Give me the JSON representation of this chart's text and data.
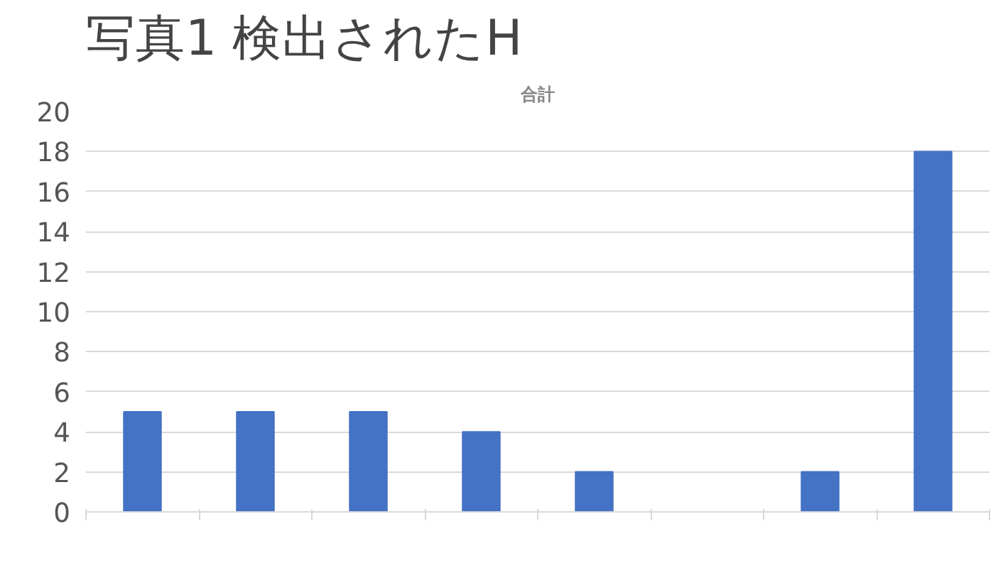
{
  "chart_data": {
    "type": "bar",
    "title": "合計",
    "annotations": [
      "写真1 検出されたH"
    ],
    "categories": [
      null,
      null,
      null,
      null,
      null,
      null,
      null,
      null
    ],
    "values": [
      5,
      5,
      5,
      4,
      2,
      0,
      2,
      18
    ],
    "color": "#4472c4",
    "ylim": [
      0,
      20
    ],
    "yticks": [
      0,
      2,
      4,
      6,
      8,
      10,
      12,
      14,
      16,
      18,
      20
    ],
    "grid": "y"
  }
}
